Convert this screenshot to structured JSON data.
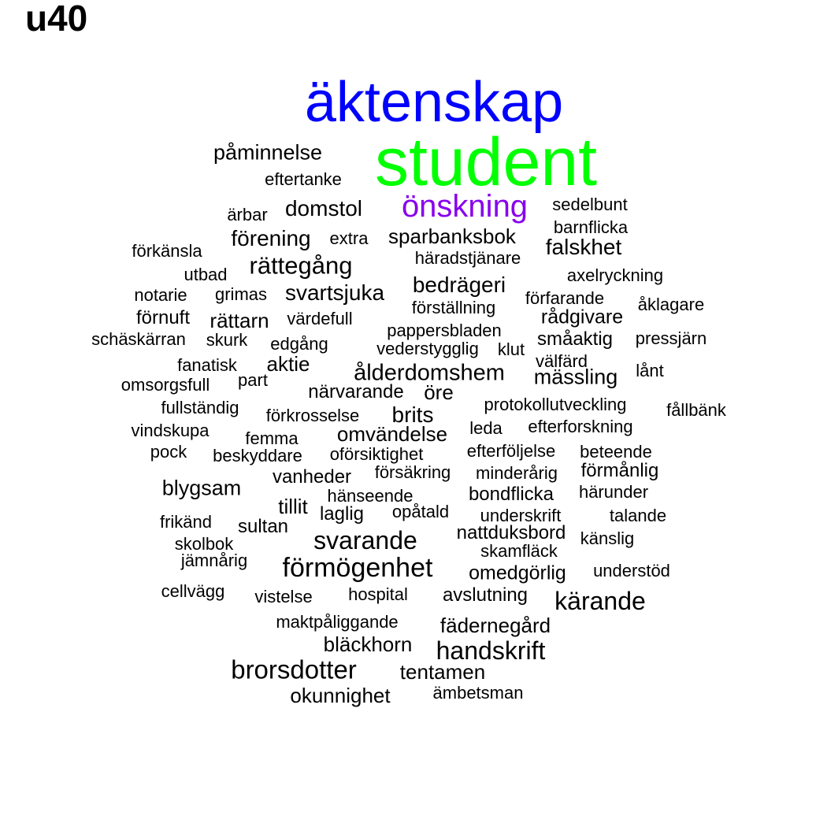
{
  "panel_title": "u40",
  "colors": {
    "background": "#ffffff",
    "default_word": "#000000",
    "rank1": "#0000ff",
    "rank2": "#00ff00",
    "rank3": "#8800ee"
  },
  "words": [
    {
      "text": "äktenskap",
      "color": "#0000ff"
    },
    {
      "text": "student",
      "color": "#00ff00"
    },
    {
      "text": "önskning",
      "color": "#8800ee"
    },
    {
      "text": "påminnelse"
    },
    {
      "text": "eftertanke"
    },
    {
      "text": "ärbar"
    },
    {
      "text": "domstol"
    },
    {
      "text": "sedelbunt"
    },
    {
      "text": "barnflicka"
    },
    {
      "text": "förening"
    },
    {
      "text": "extra"
    },
    {
      "text": "sparbanksbok"
    },
    {
      "text": "falskhet"
    },
    {
      "text": "förkänsla"
    },
    {
      "text": "häradstjänare"
    },
    {
      "text": "rättegång"
    },
    {
      "text": "utbad"
    },
    {
      "text": "axelryckning"
    },
    {
      "text": "bedrägeri"
    },
    {
      "text": "notarie"
    },
    {
      "text": "grimas"
    },
    {
      "text": "svartsjuka"
    },
    {
      "text": "förfarande"
    },
    {
      "text": "åklagare"
    },
    {
      "text": "förställning"
    },
    {
      "text": "förnuft"
    },
    {
      "text": "rättarn"
    },
    {
      "text": "värdefull"
    },
    {
      "text": "rådgivare"
    },
    {
      "text": "pappersbladen"
    },
    {
      "text": "schäskärran"
    },
    {
      "text": "skurk"
    },
    {
      "text": "edgång"
    },
    {
      "text": "småaktig"
    },
    {
      "text": "pressjärn"
    },
    {
      "text": "vederstygglig"
    },
    {
      "text": "klut"
    },
    {
      "text": "välfärd"
    },
    {
      "text": "fanatisk"
    },
    {
      "text": "aktie"
    },
    {
      "text": "ålderdomshem"
    },
    {
      "text": "lånt"
    },
    {
      "text": "mässling"
    },
    {
      "text": "omsorgsfull"
    },
    {
      "text": "part"
    },
    {
      "text": "närvarande"
    },
    {
      "text": "öre"
    },
    {
      "text": "protokollutveckling"
    },
    {
      "text": "fållbänk"
    },
    {
      "text": "fullständig"
    },
    {
      "text": "förkrosselse"
    },
    {
      "text": "brits"
    },
    {
      "text": "vindskupa"
    },
    {
      "text": "leda"
    },
    {
      "text": "efterforskning"
    },
    {
      "text": "femma"
    },
    {
      "text": "omvändelse"
    },
    {
      "text": "pock"
    },
    {
      "text": "beskyddare"
    },
    {
      "text": "oförsiktighet"
    },
    {
      "text": "efterföljelse"
    },
    {
      "text": "beteende"
    },
    {
      "text": "vanheder"
    },
    {
      "text": "försäkring"
    },
    {
      "text": "minderårig"
    },
    {
      "text": "förmånlig"
    },
    {
      "text": "blygsam"
    },
    {
      "text": "hänseende"
    },
    {
      "text": "bondflicka"
    },
    {
      "text": "härunder"
    },
    {
      "text": "tillit"
    },
    {
      "text": "laglig"
    },
    {
      "text": "opåtald"
    },
    {
      "text": "underskrift"
    },
    {
      "text": "talande"
    },
    {
      "text": "frikänd"
    },
    {
      "text": "sultan"
    },
    {
      "text": "nattduksbord"
    },
    {
      "text": "känslig"
    },
    {
      "text": "skolbok"
    },
    {
      "text": "svarande"
    },
    {
      "text": "skamfläck"
    },
    {
      "text": "jämnårig"
    },
    {
      "text": "förmögenhet"
    },
    {
      "text": "omedgörlig"
    },
    {
      "text": "understöd"
    },
    {
      "text": "cellvägg"
    },
    {
      "text": "vistelse"
    },
    {
      "text": "hospital"
    },
    {
      "text": "avslutning"
    },
    {
      "text": "kärande"
    },
    {
      "text": "maktpåliggande"
    },
    {
      "text": "fädernegård"
    },
    {
      "text": "bläckhorn"
    },
    {
      "text": "handskrift"
    },
    {
      "text": "brorsdotter"
    },
    {
      "text": "tentamen"
    },
    {
      "text": "okunnighet"
    },
    {
      "text": "ämbetsman"
    }
  ]
}
